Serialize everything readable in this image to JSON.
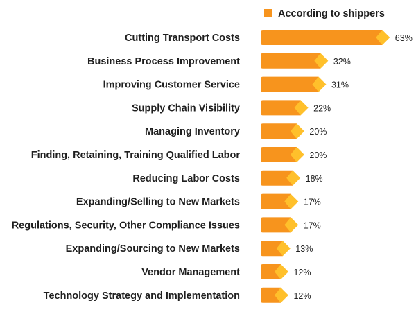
{
  "chart_data": {
    "type": "bar",
    "orientation": "horizontal",
    "categories": [
      "Cutting Transport Costs",
      "Business Process Improvement",
      "Improving Customer Service",
      "Supply Chain Visibility",
      "Managing Inventory",
      "Finding, Retaining, Training Qualified Labor",
      "Reducing Labor Costs",
      "Expanding/Selling to New Markets",
      "Regulations, Security, Other Compliance Issues",
      "Expanding/Sourcing to New Markets",
      "Vendor Management",
      "Technology Strategy and Implementation"
    ],
    "series": [
      {
        "name": "According to shippers",
        "values": [
          63,
          32,
          31,
          22,
          20,
          20,
          18,
          17,
          17,
          13,
          12,
          12
        ],
        "data_labels": [
          "63%",
          "32%",
          "31%",
          "22%",
          "20%",
          "20%",
          "18%",
          "17%",
          "17%",
          "13%",
          "12%",
          "12%"
        ]
      }
    ],
    "xlim": [
      0,
      63
    ],
    "grid": false,
    "legend_placement": "top-right"
  },
  "colors": {
    "bar": "#f7941d",
    "bar_tip": "#ffc02b"
  }
}
